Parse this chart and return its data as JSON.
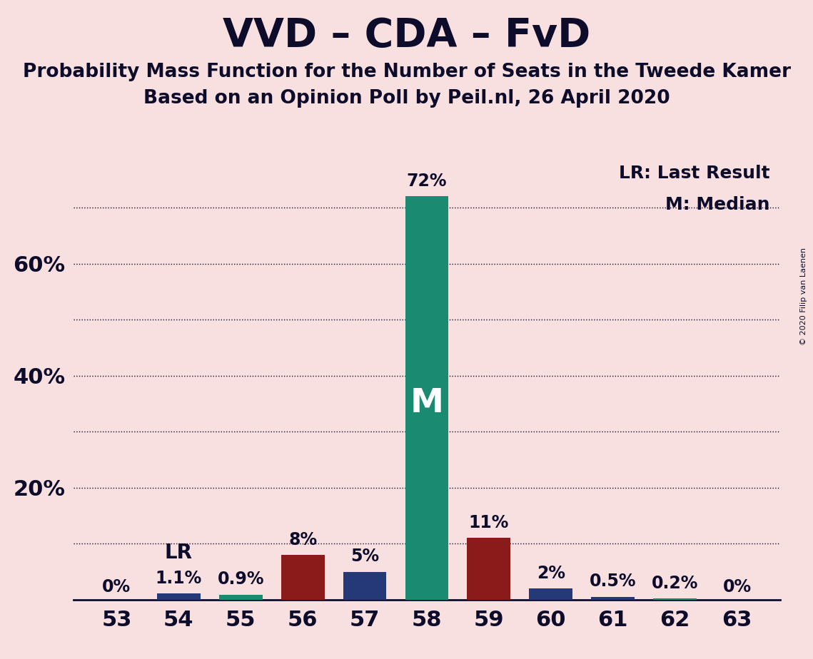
{
  "title": "VVD – CDA – FvD",
  "subtitle1": "Probability Mass Function for the Number of Seats in the Tweede Kamer",
  "subtitle2": "Based on an Opinion Poll by Peil.nl, 26 April 2020",
  "copyright": "© 2020 Filip van Laenen",
  "seats": [
    53,
    54,
    55,
    56,
    57,
    58,
    59,
    60,
    61,
    62,
    63
  ],
  "values": [
    0.0,
    1.1,
    0.9,
    8.0,
    5.0,
    72.0,
    11.0,
    2.0,
    0.5,
    0.2,
    0.0
  ],
  "labels": [
    "0%",
    "1.1%",
    "0.9%",
    "8%",
    "5%",
    "72%",
    "11%",
    "2%",
    "0.5%",
    "0.2%",
    "0%"
  ],
  "colors": [
    "#253878",
    "#253878",
    "#1a8a70",
    "#8b1a1a",
    "#253878",
    "#1a8a70",
    "#8b1a1a",
    "#253878",
    "#253878",
    "#1a8a70",
    "#253878"
  ],
  "median_seat": 58,
  "lr_seat": 54,
  "median_label": "M",
  "lr_label": "LR",
  "legend_lr": "LR: Last Result",
  "legend_m": "M: Median",
  "background_color": "#f9e0e0",
  "bar_teal": "#1a8a70",
  "bar_dark_red": "#8b1a1a",
  "bar_navy": "#253878",
  "title_color": "#0d0d2b",
  "ylim": [
    0,
    80
  ],
  "grid_yticks": [
    10,
    20,
    30,
    40,
    50,
    60,
    70
  ],
  "ytick_positions": [
    20,
    40,
    60
  ],
  "ytick_labels": [
    "20%",
    "40%",
    "60%"
  ]
}
